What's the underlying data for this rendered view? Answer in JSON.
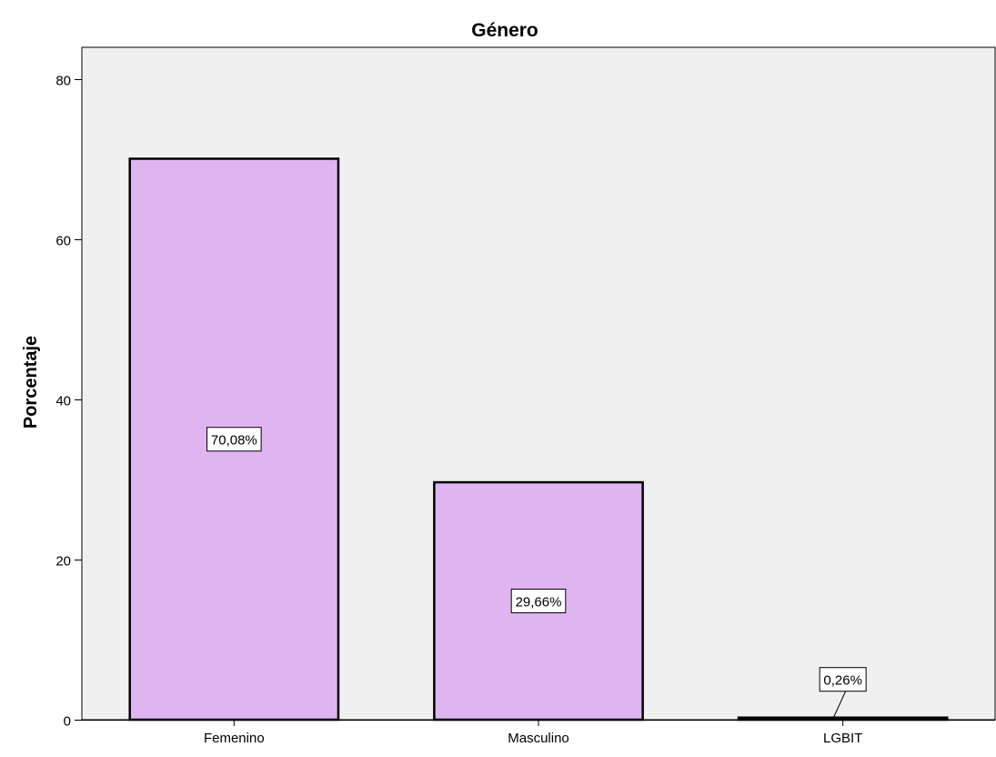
{
  "chart_data": {
    "type": "bar",
    "title": "Género",
    "xlabel": "",
    "ylabel": "Porcentaje",
    "categories": [
      "Femenino",
      "Masculino",
      "LGBIT"
    ],
    "values": [
      70.08,
      29.66,
      0.26
    ],
    "data_labels": [
      "70,08%",
      "29,66%",
      "0,26%"
    ],
    "ylim": [
      0,
      84
    ],
    "yticks": [
      0,
      20,
      40,
      60,
      80
    ],
    "ytick_labels": [
      "0",
      "20",
      "40",
      "60",
      "80"
    ],
    "grid": false,
    "legend": "none",
    "colors": {
      "bar_fill": "#dfb5f1",
      "bar_stroke": "#000000",
      "plot_background": "#f0f0f0",
      "axis": "#000000"
    }
  }
}
